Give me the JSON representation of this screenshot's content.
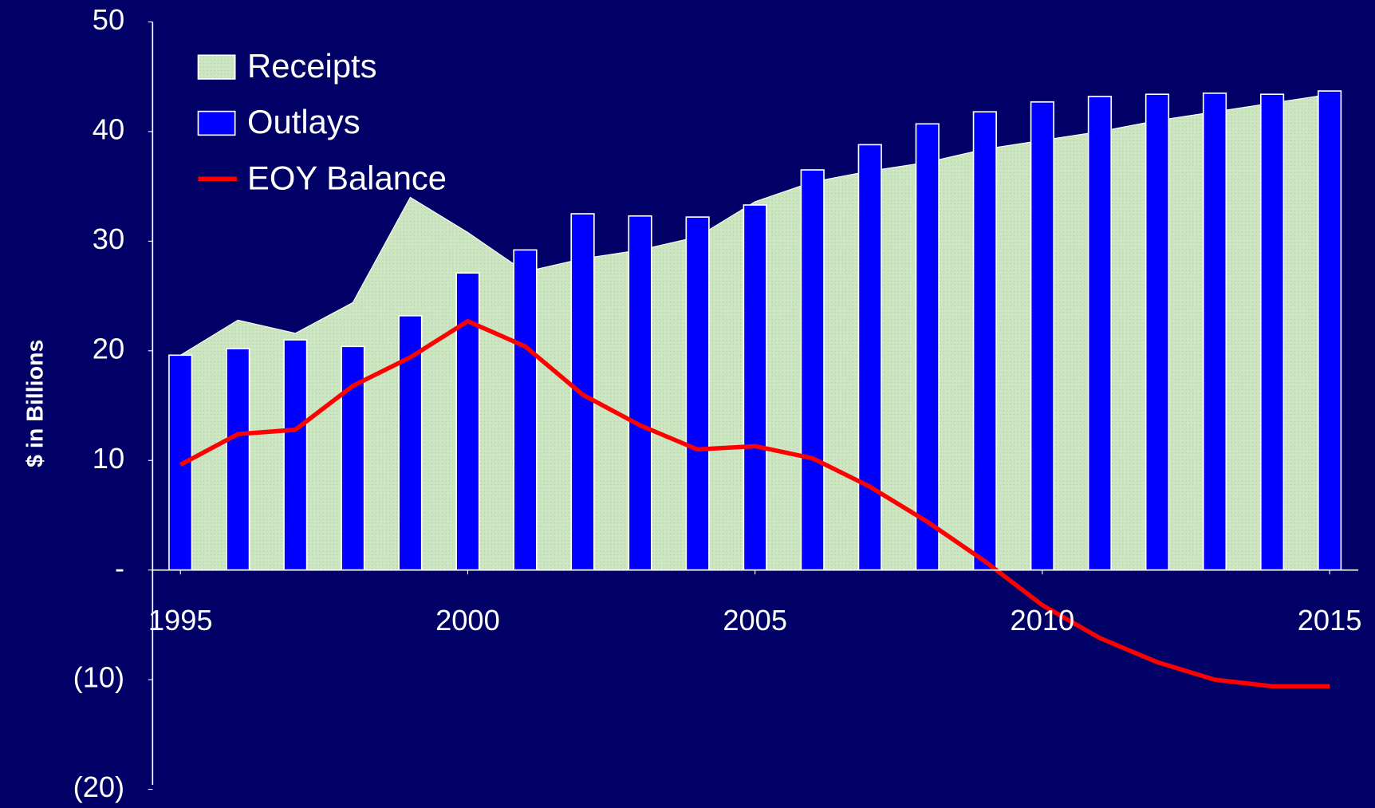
{
  "chart_data": {
    "type": "bar+area+line",
    "y_label": "$ in Billions",
    "x": [
      1995,
      1996,
      1997,
      1998,
      1999,
      2000,
      2001,
      2002,
      2003,
      2004,
      2005,
      2006,
      2007,
      2008,
      2009,
      2010,
      2011,
      2012,
      2013,
      2014,
      2015
    ],
    "series": [
      {
        "name": "Receipts",
        "type": "area",
        "color": "#cce6c2",
        "values": [
          19.6,
          22.8,
          21.6,
          24.4,
          34,
          30.8,
          27.2,
          28.4,
          29.2,
          30.4,
          33.6,
          35.4,
          36.4,
          37.2,
          38.4,
          39.2,
          40,
          41,
          41.8,
          42.6,
          43.4
        ]
      },
      {
        "name": "Outlays",
        "type": "bar",
        "color": "#0000ff",
        "values": [
          19.6,
          20.2,
          21,
          20.4,
          23.2,
          27.1,
          29.2,
          32.5,
          32.3,
          32.2,
          33.3,
          36.5,
          38.8,
          40.7,
          41.8,
          42.7,
          43.2,
          43.4,
          43.5,
          43.4,
          43.7
        ]
      },
      {
        "name": "EOY Balance",
        "type": "line",
        "color": "#ff0000",
        "values": [
          9.6,
          12.4,
          12.8,
          16.8,
          19.4,
          22.7,
          20.4,
          16,
          13.2,
          11,
          11.3,
          10.2,
          7.6,
          4.4,
          0.8,
          -3.2,
          -6.2,
          -8.4,
          -10,
          -10.6,
          -10.6
        ]
      }
    ],
    "xlim": [
      1994.5,
      2015.5
    ],
    "xticks": [
      1995,
      2000,
      2005,
      2010,
      2015
    ],
    "ylim": [
      -20,
      50
    ],
    "yticks": [
      {
        "value": -20,
        "label": "(20)"
      },
      {
        "value": -10,
        "label": "(10)"
      },
      {
        "value": 0,
        "label": "-"
      },
      10,
      20,
      30,
      40,
      50
    ],
    "legend": "top-left"
  }
}
